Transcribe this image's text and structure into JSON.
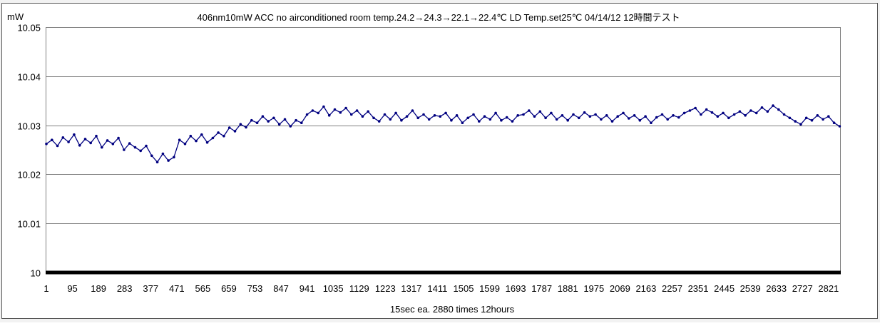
{
  "chart_data": {
    "type": "line",
    "title": "406nm10mW  ACC  no airconditioned  room temp.24.2→24.3→22.1→22.4℃  LD Temp.set25℃   04/14/12  12時間テスト",
    "ylabel": "mW",
    "xlabel": "15sec ea. 2880 times 12hours",
    "ylim": [
      10,
      10.05
    ],
    "yticks": [
      "10",
      "10.01",
      "10.02",
      "10.03",
      "10.04",
      "10.05"
    ],
    "ytick_values": [
      10,
      10.01,
      10.02,
      10.03,
      10.04,
      10.05
    ],
    "xlim": [
      1,
      2860
    ],
    "xticks": [
      "1",
      "95",
      "189",
      "283",
      "377",
      "471",
      "565",
      "659",
      "753",
      "847",
      "941",
      "1035",
      "1129",
      "1223",
      "1317",
      "1411",
      "1505",
      "1599",
      "1693",
      "1787",
      "1881",
      "1975",
      "2069",
      "2163",
      "2257",
      "2351",
      "2445",
      "2539",
      "2633",
      "2727",
      "2821"
    ],
    "grid": true,
    "legend": "none",
    "series": [
      {
        "name": "mW",
        "color": "#000080",
        "x_start": 1,
        "x_step": 20,
        "values": [
          10.0262,
          10.027,
          10.0258,
          10.0275,
          10.0266,
          10.0281,
          10.0259,
          10.0272,
          10.0264,
          10.0278,
          10.0255,
          10.0269,
          10.0262,
          10.0274,
          10.025,
          10.0263,
          10.0255,
          10.0248,
          10.0258,
          10.0238,
          10.0225,
          10.0242,
          10.0228,
          10.0235,
          10.027,
          10.0262,
          10.0278,
          10.0268,
          10.0281,
          10.0265,
          10.0274,
          10.0285,
          10.0278,
          10.0295,
          10.0288,
          10.0302,
          10.0296,
          10.031,
          10.0305,
          10.0318,
          10.0308,
          10.0315,
          10.0302,
          10.0312,
          10.0298,
          10.031,
          10.0305,
          10.0322,
          10.033,
          10.0325,
          10.0338,
          10.032,
          10.0332,
          10.0326,
          10.0335,
          10.0322,
          10.033,
          10.0318,
          10.0328,
          10.0315,
          10.0308,
          10.0322,
          10.0312,
          10.0325,
          10.031,
          10.0318,
          10.033,
          10.0315,
          10.0322,
          10.0312,
          10.032,
          10.0318,
          10.0325,
          10.031,
          10.032,
          10.0305,
          10.0315,
          10.0322,
          10.0308,
          10.0318,
          10.0312,
          10.0325,
          10.031,
          10.0316,
          10.0308,
          10.032,
          10.0322,
          10.033,
          10.0318,
          10.0328,
          10.0315,
          10.0325,
          10.0312,
          10.032,
          10.031,
          10.0322,
          10.0315,
          10.0326,
          10.0318,
          10.0322,
          10.0312,
          10.032,
          10.0308,
          10.0318,
          10.0325,
          10.0314,
          10.032,
          10.031,
          10.0318,
          10.0305,
          10.0316,
          10.0322,
          10.0312,
          10.032,
          10.0316,
          10.0325,
          10.033,
          10.0335,
          10.0322,
          10.0332,
          10.0326,
          10.0318,
          10.0325,
          10.0315,
          10.0322,
          10.0328,
          10.032,
          10.033,
          10.0325,
          10.0336,
          10.0328,
          10.034,
          10.0332,
          10.0322,
          10.0315,
          10.0308,
          10.0302,
          10.0315,
          10.031,
          10.032,
          10.0312,
          10.0318,
          10.0305,
          10.0298
        ]
      }
    ]
  }
}
